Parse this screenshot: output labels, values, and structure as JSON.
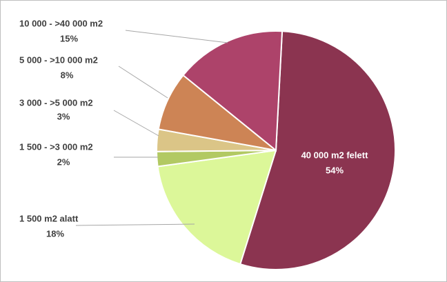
{
  "chart_data": {
    "type": "pie",
    "categories": [
      "40 000 m2 felett",
      "1 500 m2 alatt",
      "1 500 - >3 000 m2",
      "3 000 - >5 000 m2",
      "5 000 - >10 000 m2",
      "10 000 - >40 000 m2"
    ],
    "values": [
      54,
      18,
      2,
      3,
      8,
      15
    ],
    "value_labels": [
      "54%",
      "18%",
      "2%",
      "3%",
      "8%",
      "15%"
    ],
    "colors": [
      "#8b3450",
      "#dcf799",
      "#b2c963",
      "#dbc587",
      "#cd8455",
      "#ad436a"
    ]
  }
}
